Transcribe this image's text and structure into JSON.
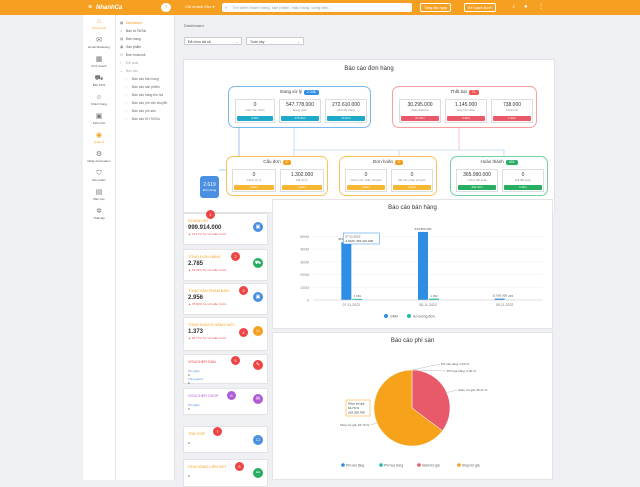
{
  "topbar": {
    "brand": "NhanhCa",
    "shop_select": "Chi nhánh Kho",
    "search_placeholder": "Tìm kiếm thành hàng, sản phẩm, mặc hàng, công việc...",
    "btn_upgrade": "Tăng tiếp ngay",
    "btn_store": "Kế hoạch Bướt",
    "colors": {
      "accent": "#f5a021"
    }
  },
  "sidebar": {
    "items": [
      {
        "label": "Tổng quan",
        "icon": "home-icon"
      },
      {
        "label": "Email Marketing",
        "icon": "mail-icon"
      },
      {
        "label": "Kinh doanh",
        "icon": "store-icon"
      },
      {
        "label": "Bán POS",
        "icon": "cart-icon"
      },
      {
        "label": "Khách hàng",
        "icon": "users-icon"
      },
      {
        "label": "Kiểm kho",
        "icon": "box-icon"
      },
      {
        "label": "Quản lý",
        "icon": "chart-icon"
      },
      {
        "label": "Nhập Automation",
        "icon": "robot-icon"
      },
      {
        "label": "Sản phẩm",
        "icon": "tag-icon"
      },
      {
        "label": "Báo cáo",
        "icon": "report-icon"
      },
      {
        "label": "Thiết lập",
        "icon": "gear-icon"
      }
    ]
  },
  "submenu": {
    "items": [
      "Dashboard",
      "Bán từ TikTok",
      "Đơn hàng",
      "Sản phẩm",
      "Đơn hoàn trả"
    ],
    "group1": "Đối soát",
    "group2": "Báo cáo",
    "reports": [
      "Báo cáo bán hàng",
      "Báo cáo sản phẩm",
      "Báo cáo hàng thu hồi",
      "Báo cáo phí vận chuyển",
      "Báo cáo phí sàn",
      "Báo cáo KH TikTok"
    ]
  },
  "breadcrumb": "Dashboard",
  "filters": {
    "shop": "Đã chọn tất cả",
    "period": "Tuần này"
  },
  "orders_report": {
    "title": "Báo cáo đơn hàng",
    "total": {
      "value": "2.619",
      "label": "Đơn hàng"
    },
    "processing": {
      "label": "Đang xử lý",
      "badge": "2.348",
      "cells": [
        {
          "value": "0",
          "label": "Chờ xác nhận",
          "btn": "0 đơn"
        },
        {
          "value": "547.778.000",
          "label": "Đang giao",
          "btn": "176 đơn"
        },
        {
          "value": "272.610.000",
          "label": "Chờ lấy hàng",
          "btn": "70 đơn"
        }
      ]
    },
    "failed": {
      "label": "Thất bại",
      "badge": "71",
      "cells": [
        {
          "value": "30.295.000",
          "label": "Giao thất bại",
          "btn": "27 đơn"
        },
        {
          "value": "1.145.000",
          "label": "Hủy bởi shop",
          "btn": "4 đơn"
        },
        {
          "value": "738.000",
          "label": "Hoàn trả",
          "btn": "1 đơn"
        }
      ]
    },
    "cancelled": {
      "label": "Cấu đơn",
      "badge": "2",
      "cells": [
        {
          "value": "0",
          "label": "Chưa xử lý",
          "btn": "0 đơn"
        },
        {
          "value": "1.302.000",
          "label": "Đã xử lý",
          "btn": "2 đơn"
        }
      ]
    },
    "delayed": {
      "label": "Đơn hoãn",
      "badge": "0",
      "cells": [
        {
          "value": "0",
          "label": "Chưa xác nhận chuyển",
          "btn": "0 đơn"
        },
        {
          "value": "0",
          "label": "Đã xác nhận chuyển",
          "btn": "0 đơn"
        }
      ]
    },
    "completed": {
      "label": "Hoàn thành",
      "badge": "492",
      "cells": [
        {
          "value": "365.990.000",
          "label": "Chưa đối soát",
          "btn": "492 đơn"
        },
        {
          "value": "0",
          "label": "Đã đối soát",
          "btn": "0 đơn"
        }
      ]
    },
    "footnote": "Xem thêm"
  },
  "kpis": [
    {
      "title": "DOANH SỐ",
      "value": "999.914.000",
      "sub": "▲ 32.17% So với tuần trước",
      "num": "1",
      "icon": "wallet-icon",
      "color": "#4a8fe0"
    },
    {
      "title": "TỔNG ĐƠN HÀNG",
      "value": "2.785",
      "sub": "▲ 40.25% So với tuần trước",
      "num": "2",
      "icon": "cart-icon",
      "color": "#27ae60"
    },
    {
      "title": "TỔNG SẢN PHẨM BÁN",
      "value": "2.956",
      "sub": "▲ 78.80% So với tuần trước",
      "num": "3",
      "icon": "box-icon",
      "color": "#4a8fe0"
    },
    {
      "title": "TỔNG KHÁCH HÀNG MỚI",
      "value": "1.373",
      "sub": "▲ 68.77% So với tuần trước",
      "num": "4",
      "icon": "user-icon",
      "color": "#f5a021"
    }
  ],
  "vouchers": [
    {
      "title": "VOUCHER SÀN",
      "num": "5",
      "icon": "ticket-icon",
      "color": "#e44",
      "r1l": "Phí giảm",
      "r1v": "0",
      "r2l": "Tổng giá trị",
      "r2v": "0"
    },
    {
      "title": "VOUCHER SHOP",
      "num": "6",
      "icon": "gift-icon",
      "color": "#b05cd4",
      "r1l": "Phí giảm",
      "r1v": "0"
    },
    {
      "title": "TRẢ GÓP",
      "num": "7",
      "icon": "card-icon",
      "color": "#4a8fe0",
      "value": "0"
    },
    {
      "title": "HOA HỒNG LIÊN KẾT",
      "num": "8",
      "icon": "link-icon",
      "color": "#27ae60",
      "value": "0"
    }
  ],
  "sales_chart": {
    "title": "Báo cáo bán hàng",
    "chart_data": {
      "type": "bar",
      "categories": [
        "07-11-2022",
        "08-11-2022",
        "09-11-2022"
      ],
      "series": [
        {
          "name": "GMV",
          "values": [
            454421000,
            534850000,
            11003000
          ],
          "color": "#2f8de4"
        },
        {
          "name": "Số lượng đơn",
          "values": [
            1181,
            1362,
            215
          ],
          "color": "#1fbfa0"
        }
      ],
      "ylabels": [
        "0",
        "100M",
        "200M",
        "300M",
        "400M",
        "500M"
      ],
      "ylim": [
        0,
        550000000
      ],
      "data_labels": [
        "454 421 000",
        "534 850 000",
        "11 003 000"
      ],
      "count_labels": [
        "1 181",
        "1 362",
        "215"
      ],
      "tooltip": {
        "date": "07-11-2022",
        "text": "● GMV: 454 421 000"
      }
    }
  },
  "fee_chart": {
    "title": "Báo cáo phí sàn",
    "chart_data": {
      "type": "pie",
      "slices": [
        {
          "name": "Phí nền tảng",
          "value": 0.0,
          "color": "#2f8de4"
        },
        {
          "name": "Phí hoa hồng",
          "value": 0.0,
          "color": "#1fbfa0"
        },
        {
          "name": "Giảm trợ giá",
          "value": 35.2,
          "color": "#e85a6a"
        },
        {
          "name": "Shop trợ giá",
          "value": 64.8,
          "color": "#f7a21b"
        }
      ],
      "labels": [
        "Phí nền tảng: 0,00 %",
        "Phí hoa hồng: 0,00 %",
        "Giảm trợ giá: 35,21 %",
        "Shop trợ giá: 64,79 %"
      ],
      "tooltip": [
        "Shop trợ giá",
        "64.79 %",
        "218.326.789"
      ]
    }
  }
}
